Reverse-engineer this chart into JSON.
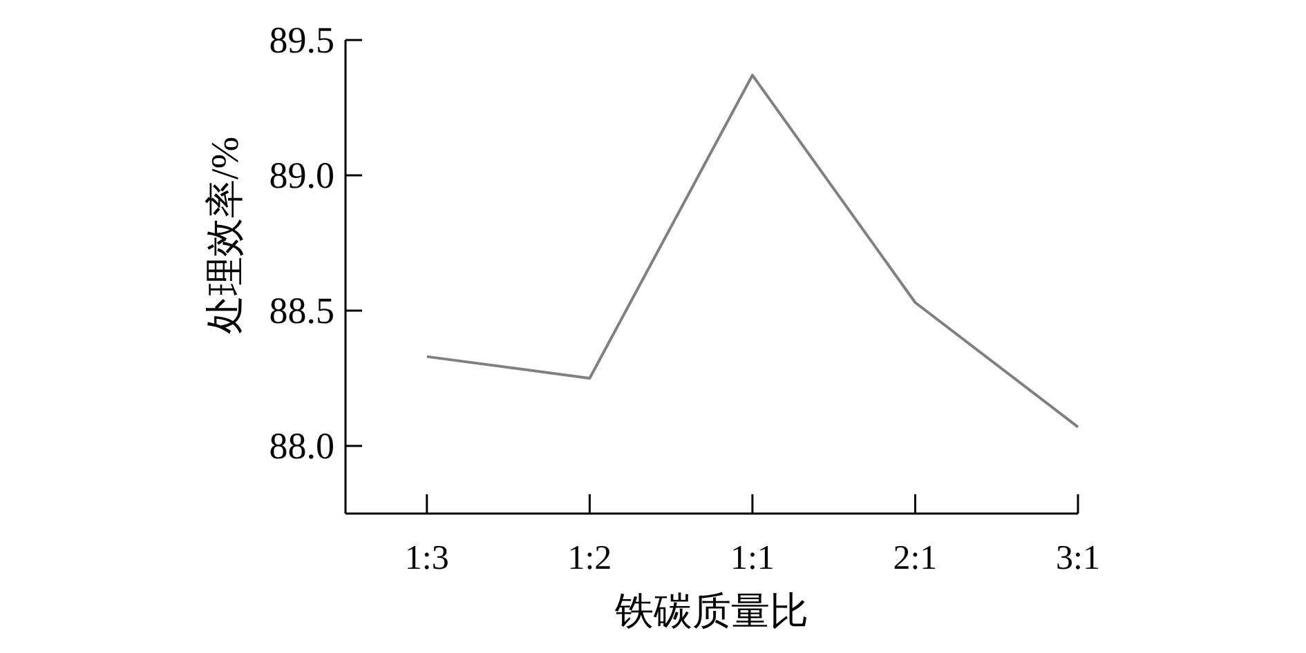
{
  "chart_data": {
    "type": "line",
    "xlabel": "铁碳质量比",
    "ylabel": "处理效率/%",
    "categories": [
      "1:3",
      "1:2",
      "1:1",
      "2:1",
      "3:1"
    ],
    "series": [
      {
        "color": "#808080",
        "values": [
          88.33,
          88.25,
          89.37,
          88.53,
          88.07
        ]
      }
    ],
    "ylim": [
      87.75,
      89.5
    ],
    "yticks": [
      {
        "value": 88.0,
        "label": "88.0"
      },
      {
        "value": 88.5,
        "label": "88.5"
      },
      {
        "value": 89.0,
        "label": "89.0"
      },
      {
        "value": 89.5,
        "label": "89.5"
      }
    ],
    "grid": false,
    "marker": "none",
    "line_style": "solid"
  }
}
